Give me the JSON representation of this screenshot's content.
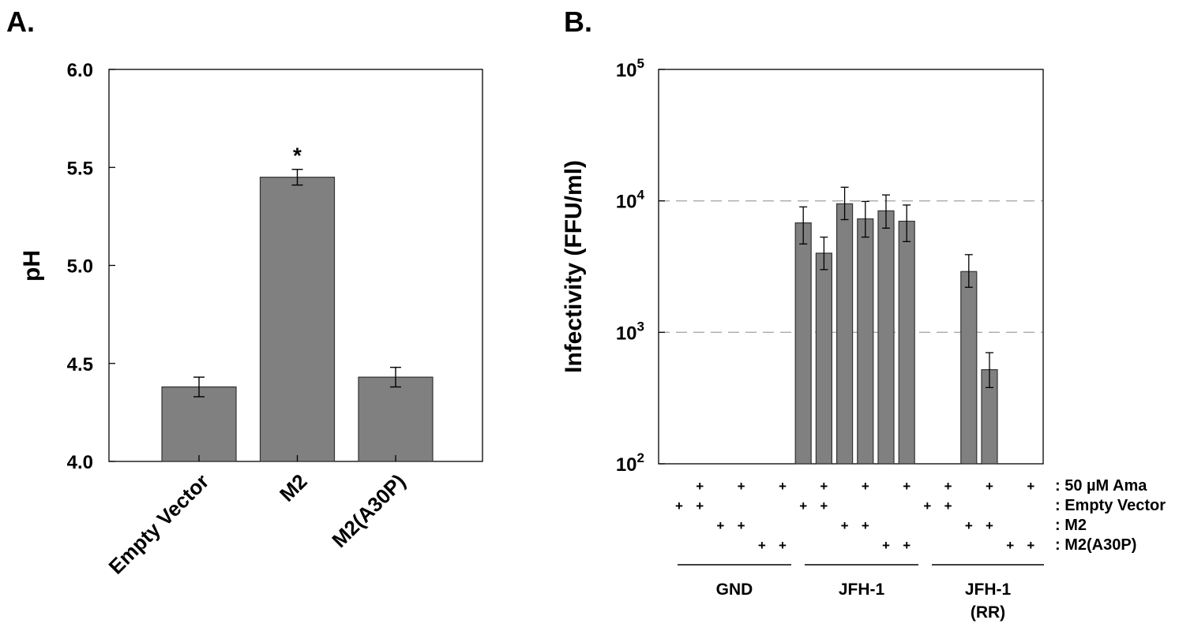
{
  "colors": {
    "bar": "#808080",
    "bar_stroke": "#333333",
    "axis": "#000000",
    "gridline": "#aaaaaa"
  },
  "chart_data": [
    {
      "panel_label": "A.",
      "type": "bar",
      "title": "",
      "xlabel": "",
      "ylabel": "pH",
      "ylim": [
        4.0,
        6.0
      ],
      "yticks": [
        "4.0",
        "4.5",
        "5.0",
        "5.5",
        "6.0"
      ],
      "grid": false,
      "categories": [
        "Empty Vector",
        "M2",
        "M2(A30P)"
      ],
      "values": [
        4.38,
        5.45,
        4.43
      ],
      "errors": [
        0.05,
        0.04,
        0.05
      ],
      "annotations": [
        {
          "category": "M2",
          "text": "*"
        }
      ]
    },
    {
      "panel_label": "B.",
      "type": "bar",
      "title": "",
      "xlabel": "",
      "ylabel": "Infectivity (FFU/ml)",
      "yscale": "log",
      "ylim": [
        100,
        100000
      ],
      "ytick_base": "10",
      "ytick_exponents": [
        "2",
        "3",
        "4",
        "5"
      ],
      "grid": "dashed at 10^3 and 10^4",
      "values": [
        null,
        null,
        null,
        null,
        null,
        null,
        6800,
        4000,
        9500,
        7300,
        8400,
        7000,
        null,
        null,
        2900,
        520,
        null,
        null
      ],
      "err_hi": [
        null,
        null,
        null,
        null,
        null,
        null,
        9000,
        5300,
        12700,
        9900,
        11100,
        9300,
        null,
        null,
        3900,
        700,
        null,
        null
      ],
      "err_lo": [
        null,
        null,
        null,
        null,
        null,
        null,
        4700,
        3000,
        7200,
        5300,
        6200,
        4900,
        null,
        null,
        2200,
        380,
        null,
        null
      ],
      "condition_rows": [
        {
          "label": ": 50 µM Ama",
          "marks": [
            0,
            1,
            0,
            1,
            0,
            1,
            0,
            1,
            0,
            1,
            0,
            1,
            0,
            1,
            0,
            1,
            0,
            1
          ]
        },
        {
          "label": ": Empty Vector",
          "marks": [
            1,
            1,
            0,
            0,
            0,
            0,
            1,
            1,
            0,
            0,
            0,
            0,
            1,
            1,
            0,
            0,
            0,
            0
          ]
        },
        {
          "label": ": M2",
          "marks": [
            0,
            0,
            1,
            1,
            0,
            0,
            0,
            0,
            1,
            1,
            0,
            0,
            0,
            0,
            1,
            1,
            0,
            0
          ]
        },
        {
          "label": ": M2(A30P)",
          "marks": [
            0,
            0,
            0,
            0,
            1,
            1,
            0,
            0,
            0,
            0,
            1,
            1,
            0,
            0,
            0,
            0,
            1,
            1
          ]
        }
      ],
      "mark_symbol": "+",
      "groups": [
        {
          "lines": [
            "GND"
          ]
        },
        {
          "lines": [
            "JFH-1"
          ]
        },
        {
          "lines": [
            "JFH-1",
            "(RR)"
          ]
        }
      ]
    }
  ]
}
